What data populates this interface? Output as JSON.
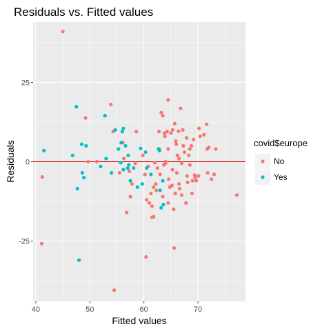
{
  "chart_data": {
    "type": "scatter",
    "title": "Residuals vs. Fitted values",
    "xlabel": "Fitted values",
    "ylabel": "Residuals",
    "xlim": [
      39.5,
      78.8
    ],
    "ylim": [
      -44,
      44
    ],
    "x_ticks": [
      40,
      50,
      60,
      70
    ],
    "y_ticks": [
      -25,
      0,
      25
    ],
    "grid": true,
    "reference_line": {
      "y": 0,
      "color": "#cc0000"
    },
    "legend": {
      "title": "covid$europe",
      "position": "right"
    },
    "series": [
      {
        "name": "No",
        "color": "#F8766D",
        "points": [
          [
            45.0,
            41
          ],
          [
            41.2,
            -4.8
          ],
          [
            41.1,
            -25.8
          ],
          [
            49.2,
            13.8
          ],
          [
            49.7,
            0
          ],
          [
            51.3,
            0
          ],
          [
            53.9,
            18
          ],
          [
            54.5,
            -40.5
          ],
          [
            54.3,
            9.5
          ],
          [
            56.1,
            6
          ],
          [
            55.5,
            -3.5
          ],
          [
            56.3,
            1
          ],
          [
            56.8,
            -16
          ],
          [
            57.3,
            -3
          ],
          [
            57.5,
            -11
          ],
          [
            57.8,
            -7
          ],
          [
            58.4,
            -0.5
          ],
          [
            58.6,
            9.5
          ],
          [
            60.4,
            -30
          ],
          [
            60.5,
            -12
          ],
          [
            60.8,
            -1.5
          ],
          [
            61.3,
            -10
          ],
          [
            61.5,
            -14
          ],
          [
            61.5,
            -17.5
          ],
          [
            61.8,
            -17.3
          ],
          [
            61.8,
            -8
          ],
          [
            62.2,
            -7
          ],
          [
            62.5,
            -2
          ],
          [
            62.8,
            9.5
          ],
          [
            62.8,
            4
          ],
          [
            63.2,
            15.5
          ],
          [
            63.5,
            14.5
          ],
          [
            63.5,
            -11
          ],
          [
            63.8,
            9
          ],
          [
            63.7,
            -1
          ],
          [
            64.0,
            -0.5
          ],
          [
            64.3,
            9.5
          ],
          [
            64.5,
            19.5
          ],
          [
            64.5,
            4
          ],
          [
            64.5,
            -13
          ],
          [
            64.8,
            -8
          ],
          [
            65.0,
            9
          ],
          [
            65.3,
            10
          ],
          [
            65.5,
            -15
          ],
          [
            65.6,
            -27.2
          ],
          [
            65.7,
            12
          ],
          [
            65.9,
            6.5
          ],
          [
            66.0,
            5.5
          ],
          [
            66.2,
            2
          ],
          [
            66.5,
            1
          ],
          [
            66.5,
            -7
          ],
          [
            66.8,
            16.8
          ],
          [
            67.0,
            -10.5
          ],
          [
            67.2,
            10
          ],
          [
            67.3,
            5
          ],
          [
            67.5,
            3
          ],
          [
            67.8,
            -13
          ],
          [
            68.0,
            -4.5
          ],
          [
            68.3,
            2
          ],
          [
            68.5,
            4
          ],
          [
            68.5,
            -1
          ],
          [
            68.9,
            -10
          ],
          [
            69.2,
            7
          ],
          [
            69.5,
            -5
          ],
          [
            69.7,
            -6
          ],
          [
            70.1,
            -4.5
          ],
          [
            70.2,
            10.5
          ],
          [
            71.1,
            8.5
          ],
          [
            71.6,
            11.8
          ],
          [
            71.7,
            4
          ],
          [
            71.8,
            -3.5
          ],
          [
            72.0,
            4.5
          ],
          [
            72.5,
            -5.5
          ],
          [
            73.0,
            -4
          ],
          [
            73.3,
            4
          ],
          [
            77.2,
            -10.5
          ],
          [
            62.0,
            -0.3
          ],
          [
            63.0,
            -4
          ],
          [
            64.6,
            -5.5
          ],
          [
            65.3,
            -2.5
          ],
          [
            66.1,
            -3.5
          ],
          [
            67.0,
            -0.5
          ],
          [
            68.8,
            5
          ],
          [
            69.4,
            -4.2
          ],
          [
            61.0,
            -13
          ],
          [
            66.6,
            -8.5
          ],
          [
            70.4,
            8
          ],
          [
            59.8,
            2
          ],
          [
            64.0,
            0
          ],
          [
            66.4,
            9.6
          ],
          [
            63.9,
            8
          ],
          [
            62.3,
            -9
          ],
          [
            65.2,
            -7.5
          ],
          [
            67.9,
            7.5
          ],
          [
            68.1,
            -6.5
          ],
          [
            60.2,
            -4
          ],
          [
            65.8,
            -10
          ],
          [
            69.0,
            -6
          ]
        ]
      },
      {
        "name": "Yes",
        "color": "#00BFC4",
        "points": [
          [
            41.5,
            3.5
          ],
          [
            47.5,
            17.3
          ],
          [
            47.7,
            -8.5
          ],
          [
            48.0,
            -31
          ],
          [
            48.5,
            5.5
          ],
          [
            48.9,
            -5
          ],
          [
            49.3,
            5
          ],
          [
            46.8,
            2
          ],
          [
            48.6,
            -3.5
          ],
          [
            52.0,
            -1.5
          ],
          [
            52.8,
            14.5
          ],
          [
            53.0,
            1
          ],
          [
            54.0,
            -3.5
          ],
          [
            54.7,
            10
          ],
          [
            55.3,
            4
          ],
          [
            55.7,
            -0.3
          ],
          [
            55.8,
            6
          ],
          [
            56.0,
            9.5
          ],
          [
            56.2,
            10.5
          ],
          [
            56.2,
            -2.5
          ],
          [
            56.6,
            5
          ],
          [
            57.0,
            -2
          ],
          [
            57.1,
            2
          ],
          [
            57.2,
            -1
          ],
          [
            57.5,
            -6
          ],
          [
            58.1,
            -2
          ],
          [
            58.8,
            -8
          ],
          [
            59.4,
            4.2
          ],
          [
            59.7,
            -7
          ],
          [
            60.3,
            3
          ],
          [
            60.5,
            -2
          ],
          [
            61.3,
            -4
          ],
          [
            62.7,
            4
          ],
          [
            62.9,
            3.5
          ],
          [
            63.0,
            -9
          ],
          [
            63.2,
            -14.5
          ],
          [
            63.5,
            -6
          ],
          [
            63.6,
            -13.5
          ]
        ]
      }
    ]
  }
}
